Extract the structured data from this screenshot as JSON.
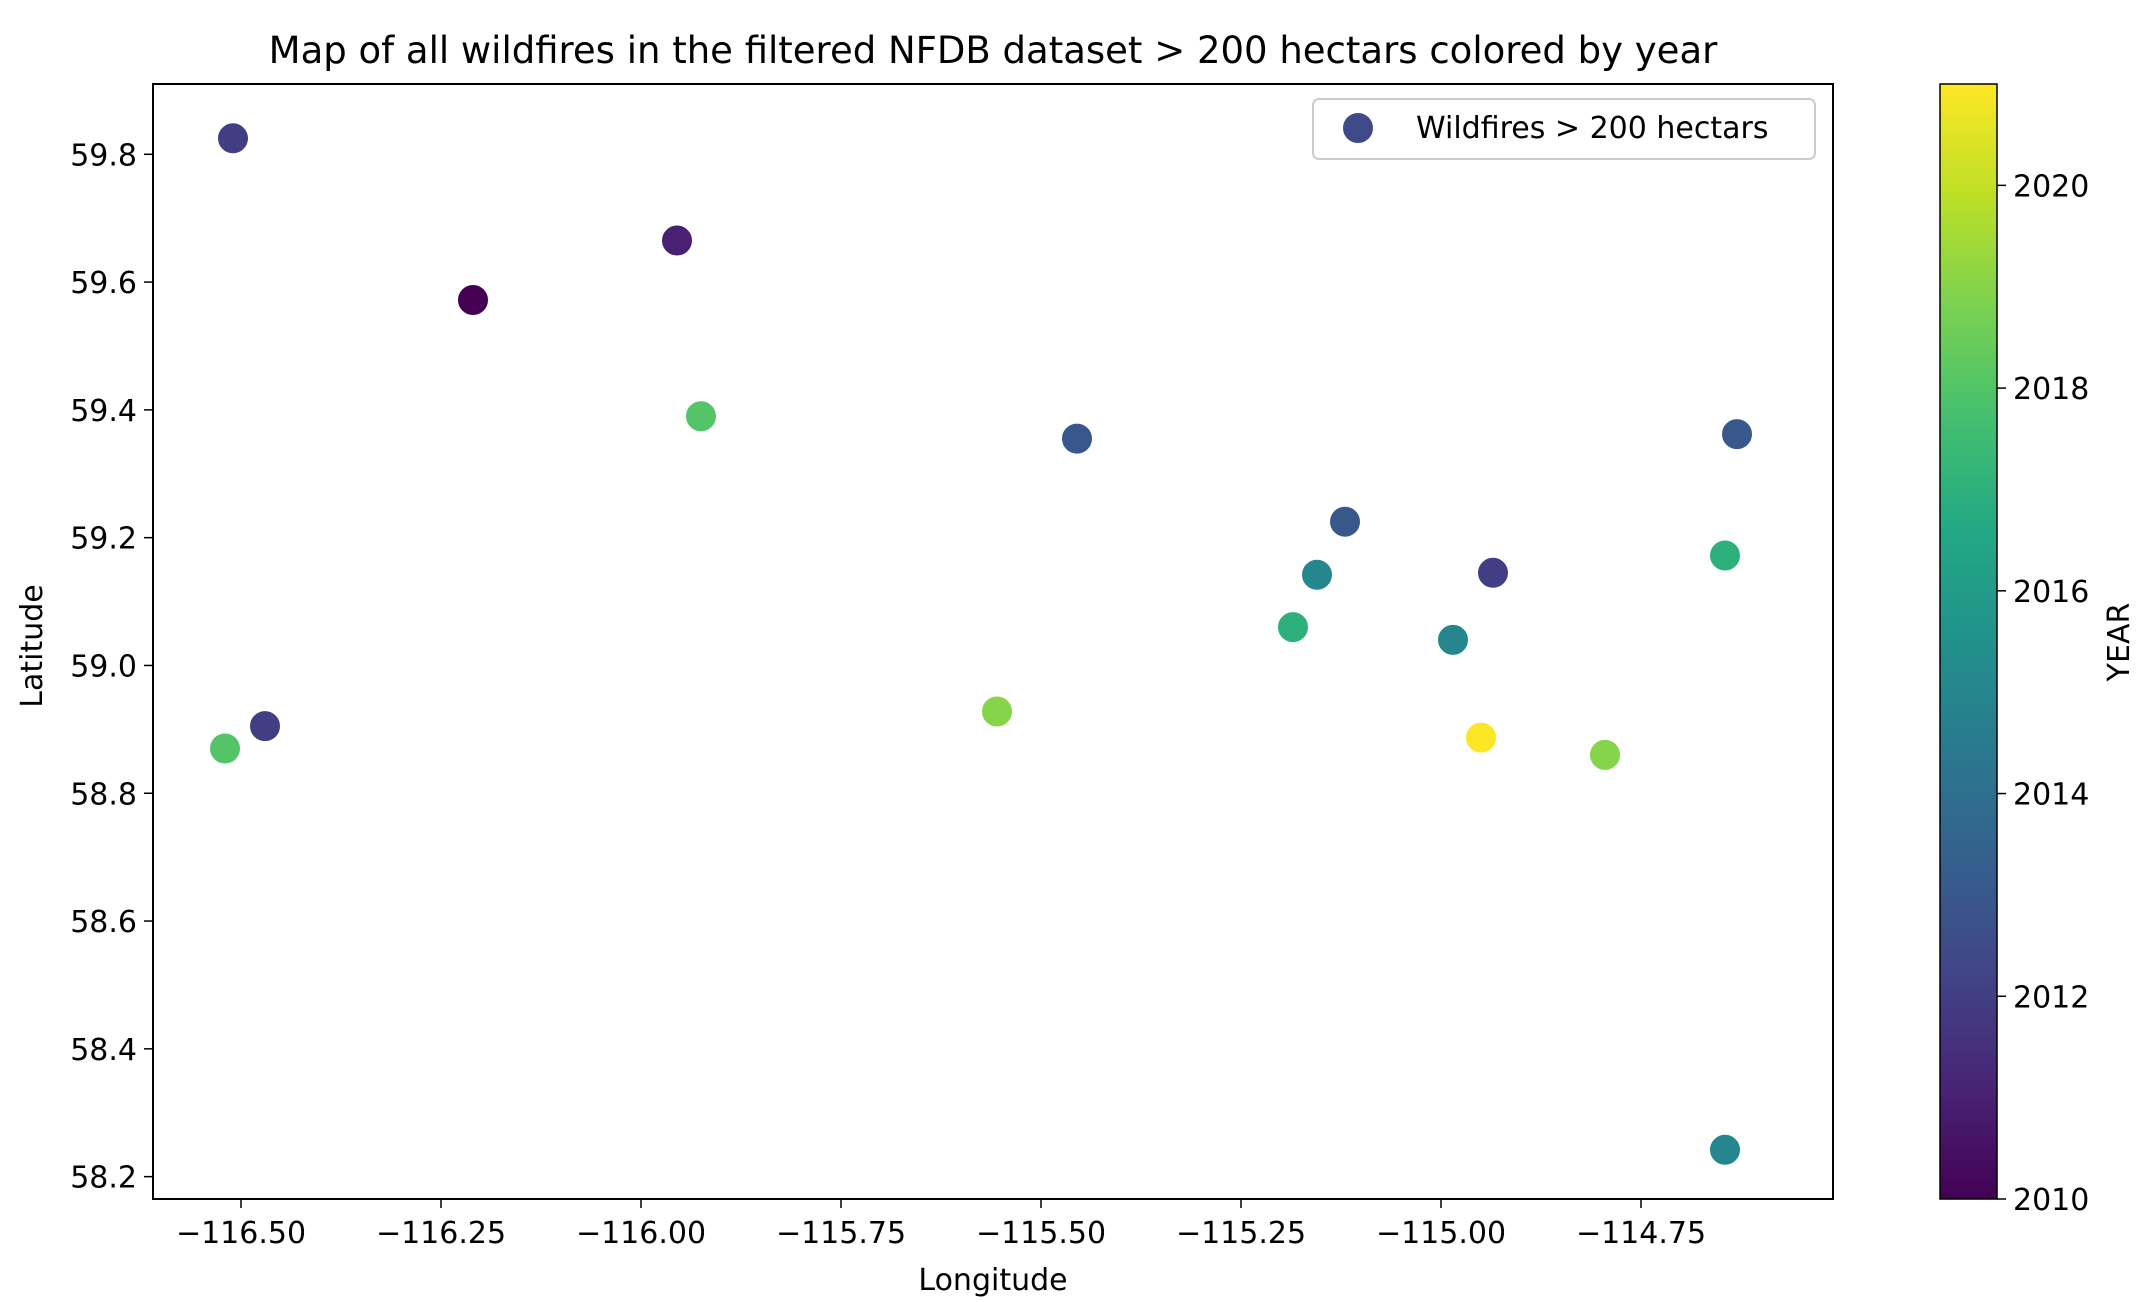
{
  "chart_data": {
    "type": "scatter",
    "title": "Map of all wildfires in the filtered NFDB dataset > 200 hectars colored by year",
    "xlabel": "Longitude",
    "ylabel": "Latitude",
    "xlim": [
      -116.61,
      -114.51
    ],
    "ylim": [
      58.165,
      59.91
    ],
    "xticks": [
      -116.5,
      -116.25,
      -116.0,
      -115.75,
      -115.5,
      -115.25,
      -115.0,
      -114.75
    ],
    "xtick_labels": [
      "−116.50",
      "−116.25",
      "−116.00",
      "−115.75",
      "−115.50",
      "−115.25",
      "−115.00",
      "−114.75"
    ],
    "yticks": [
      58.2,
      58.4,
      58.6,
      58.8,
      59.0,
      59.2,
      59.4,
      59.6,
      59.8
    ],
    "ytick_labels": [
      "58.2",
      "58.4",
      "58.6",
      "58.8",
      "59.0",
      "59.2",
      "59.4",
      "59.6",
      "59.8"
    ],
    "grid": false,
    "legend": {
      "entries": [
        "Wildfires > 200 hectars"
      ],
      "placement": "top-right",
      "marker_color": "#3e4a89"
    },
    "colorbar": {
      "label": "YEAR",
      "range": [
        2010,
        2021
      ],
      "ticks": [
        2010,
        2012,
        2014,
        2016,
        2018,
        2020
      ],
      "tick_labels": [
        "2010",
        "2012",
        "2014",
        "2016",
        "2018",
        "2020"
      ],
      "colormap": "viridis"
    },
    "points": [
      {
        "x": -116.51,
        "y": 59.825,
        "year": 2012
      },
      {
        "x": -116.21,
        "y": 59.572,
        "year": 2010
      },
      {
        "x": -115.955,
        "y": 59.665,
        "year": 2011
      },
      {
        "x": -115.925,
        "y": 59.39,
        "year": 2018
      },
      {
        "x": -116.47,
        "y": 58.905,
        "year": 2012
      },
      {
        "x": -116.52,
        "y": 58.87,
        "year": 2018
      },
      {
        "x": -115.555,
        "y": 58.928,
        "year": 2019
      },
      {
        "x": -115.455,
        "y": 59.355,
        "year": 2013
      },
      {
        "x": -115.12,
        "y": 59.225,
        "year": 2013
      },
      {
        "x": -115.155,
        "y": 59.142,
        "year": 2015
      },
      {
        "x": -115.185,
        "y": 59.06,
        "year": 2017
      },
      {
        "x": -114.985,
        "y": 59.04,
        "year": 2015
      },
      {
        "x": -114.935,
        "y": 59.145,
        "year": 2012
      },
      {
        "x": -114.95,
        "y": 58.887,
        "year": 2021
      },
      {
        "x": -114.795,
        "y": 58.86,
        "year": 2019
      },
      {
        "x": -114.63,
        "y": 59.362,
        "year": 2013
      },
      {
        "x": -114.645,
        "y": 59.172,
        "year": 2017
      },
      {
        "x": -114.645,
        "y": 58.242,
        "year": 2015
      }
    ]
  }
}
